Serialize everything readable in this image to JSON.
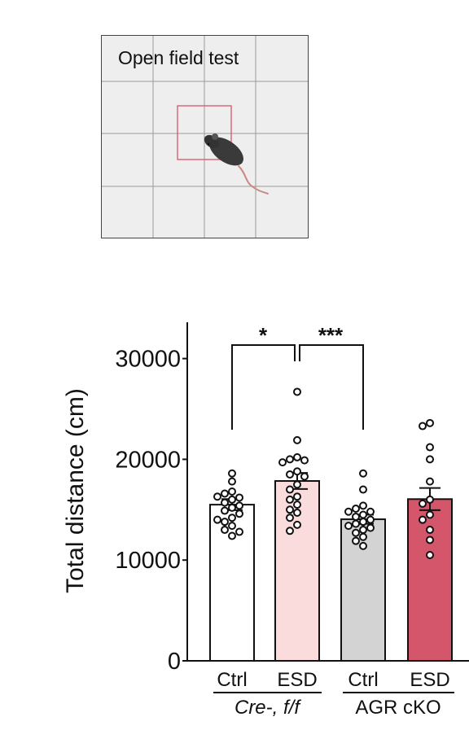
{
  "diagram": {
    "title": "Open field test",
    "icon": "mouse-icon"
  },
  "chart_data": {
    "type": "bar",
    "ylabel": "Total distance (cm)",
    "ylim": [
      0,
      32000
    ],
    "yticks": [
      "30000",
      "20000",
      "10000",
      "0"
    ],
    "categories": [
      "Ctrl",
      "ESD",
      "Ctrl",
      "ESD"
    ],
    "groups": [
      "Cre-, f/f",
      "AGR cKO"
    ],
    "values": [
      15500,
      17850,
      14050,
      16050
    ],
    "sem": [
      550,
      800,
      450,
      1100
    ],
    "bar_colors": [
      "#ffffff",
      "#fadcdd",
      "#d3d3d3",
      "#d4566a"
    ],
    "points": [
      [
        18600,
        17800,
        16800,
        16600,
        16200,
        16000,
        15700,
        15400,
        15200,
        14900,
        14600,
        14200,
        13800,
        13400,
        13000,
        12800,
        12400,
        16300,
        14000
      ],
      [
        26700,
        21900,
        20200,
        20000,
        19900,
        18800,
        18500,
        18300,
        17500,
        17000,
        16300,
        16000,
        15500,
        15000,
        14700,
        14200,
        13500,
        12900,
        19700
      ],
      [
        18600,
        17000,
        15400,
        15100,
        14800,
        14500,
        14300,
        14000,
        13800,
        13600,
        13400,
        13200,
        13000,
        12700,
        12300,
        11900,
        11400,
        14800
      ],
      [
        23600,
        23300,
        21200,
        20000,
        17800,
        16000,
        15600,
        14500,
        14000,
        13000,
        12000,
        10500
      ]
    ],
    "significance": [
      {
        "pair": [
          0,
          1
        ],
        "label": "*"
      },
      {
        "pair": [
          1,
          2
        ],
        "label": "***"
      }
    ]
  }
}
